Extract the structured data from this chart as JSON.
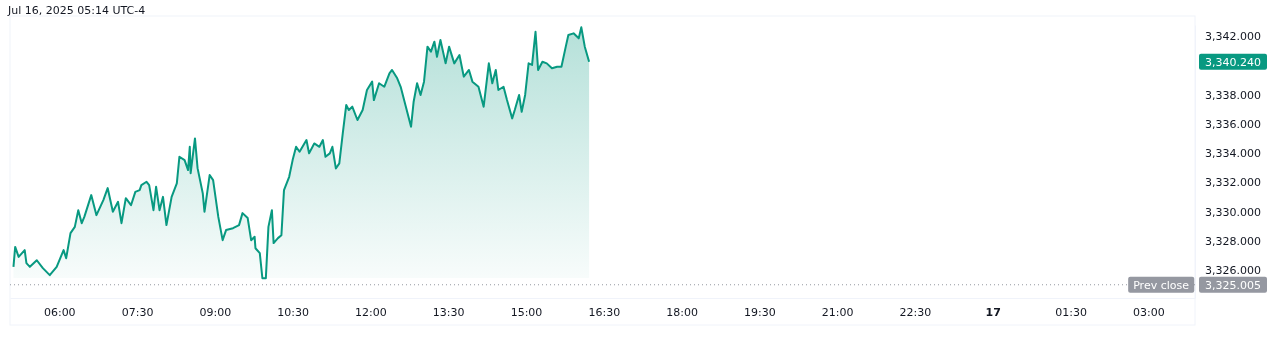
{
  "chart_data": {
    "type": "area",
    "title": "Jul 16, 2025 05:14 UTC-4",
    "x": [
      "2025-07-16T05:07",
      "2025-07-16T05:09",
      "2025-07-16T05:13",
      "2025-07-16T05:20",
      "2025-07-16T05:22",
      "2025-07-16T05:26",
      "2025-07-16T05:34",
      "2025-07-16T05:41",
      "2025-07-16T05:49",
      "2025-07-16T05:57",
      "2025-07-16T06:05",
      "2025-07-16T06:08",
      "2025-07-16T06:13",
      "2025-07-16T06:18",
      "2025-07-16T06:22",
      "2025-07-16T06:26",
      "2025-07-16T06:29",
      "2025-07-16T06:37",
      "2025-07-16T06:43",
      "2025-07-16T06:51",
      "2025-07-16T06:56",
      "2025-07-16T07:02",
      "2025-07-16T07:08",
      "2025-07-16T07:12",
      "2025-07-16T07:17",
      "2025-07-16T07:23",
      "2025-07-16T07:28",
      "2025-07-16T07:33",
      "2025-07-16T07:35",
      "2025-07-16T07:41",
      "2025-07-16T07:44",
      "2025-07-16T07:49",
      "2025-07-16T07:52",
      "2025-07-16T07:56",
      "2025-07-16T08:00",
      "2025-07-16T08:04",
      "2025-07-16T08:10",
      "2025-07-16T08:16",
      "2025-07-16T08:19",
      "2025-07-16T08:25",
      "2025-07-16T08:29",
      "2025-07-16T08:31",
      "2025-07-16T08:32",
      "2025-07-16T08:37",
      "2025-07-16T08:40",
      "2025-07-16T08:46",
      "2025-07-16T08:48",
      "2025-07-16T08:54",
      "2025-07-16T08:58",
      "2025-07-16T09:04",
      "2025-07-16T09:09",
      "2025-07-16T09:13",
      "2025-07-16T09:21",
      "2025-07-16T09:28",
      "2025-07-16T09:32",
      "2025-07-16T09:38",
      "2025-07-16T09:42",
      "2025-07-16T09:46",
      "2025-07-16T09:47",
      "2025-07-16T09:52",
      "2025-07-16T09:55",
      "2025-07-16T09:59",
      "2025-07-16T10:02",
      "2025-07-16T10:06",
      "2025-07-16T10:08",
      "2025-07-16T10:13",
      "2025-07-16T10:17",
      "2025-07-16T10:20",
      "2025-07-16T10:26",
      "2025-07-16T10:30",
      "2025-07-16T10:34",
      "2025-07-16T10:38",
      "2025-07-16T10:46",
      "2025-07-16T10:49",
      "2025-07-16T10:55",
      "2025-07-16T11:01",
      "2025-07-16T11:05",
      "2025-07-16T11:08",
      "2025-07-16T11:13",
      "2025-07-16T11:16",
      "2025-07-16T11:20",
      "2025-07-16T11:24",
      "2025-07-16T11:28",
      "2025-07-16T11:32",
      "2025-07-16T11:35",
      "2025-07-16T11:39",
      "2025-07-16T11:45",
      "2025-07-16T11:51",
      "2025-07-16T11:56",
      "2025-07-16T12:02",
      "2025-07-16T12:04",
      "2025-07-16T12:10",
      "2025-07-16T12:16",
      "2025-07-16T12:22",
      "2025-07-16T12:25",
      "2025-07-16T12:31",
      "2025-07-16T12:35",
      "2025-07-16T12:41",
      "2025-07-16T12:47",
      "2025-07-16T12:50",
      "2025-07-16T12:54",
      "2025-07-16T12:58",
      "2025-07-16T13:02",
      "2025-07-16T13:06",
      "2025-07-16T13:10",
      "2025-07-16T13:14",
      "2025-07-16T13:17",
      "2025-07-16T13:21",
      "2025-07-16T13:27",
      "2025-07-16T13:31",
      "2025-07-16T13:37",
      "2025-07-16T13:43",
      "2025-07-16T13:48",
      "2025-07-16T13:54",
      "2025-07-16T13:58",
      "2025-07-16T14:05",
      "2025-07-16T14:11",
      "2025-07-16T14:17",
      "2025-07-16T14:21",
      "2025-07-16T14:25",
      "2025-07-16T14:28",
      "2025-07-16T14:34",
      "2025-07-16T14:38",
      "2025-07-16T14:44",
      "2025-07-16T14:47",
      "2025-07-16T14:52",
      "2025-07-16T14:55",
      "2025-07-16T14:59",
      "2025-07-16T15:03",
      "2025-07-16T15:07",
      "2025-07-16T15:11",
      "2025-07-16T15:14",
      "2025-07-16T15:19",
      "2025-07-16T15:24",
      "2025-07-16T15:30",
      "2025-07-16T15:36",
      "2025-07-16T15:41",
      "2025-07-16T15:46",
      "2025-07-16T15:49",
      "2025-07-16T15:55",
      "2025-07-16T16:01",
      "2025-07-16T16:04",
      "2025-07-16T16:08",
      "2025-07-16T16:13"
    ],
    "series": [
      {
        "color": "#089981",
        "values": [
          3326.23,
          3327.59,
          3326.91,
          3327.37,
          3326.48,
          3326.23,
          3326.68,
          3326.14,
          3325.66,
          3326.23,
          3327.37,
          3326.82,
          3328.53,
          3328.96,
          3330.1,
          3329.21,
          3329.64,
          3331.13,
          3329.76,
          3330.79,
          3331.61,
          3329.99,
          3330.67,
          3329.21,
          3330.92,
          3330.44,
          3331.35,
          3331.47,
          3331.81,
          3332.04,
          3331.81,
          3330.1,
          3331.7,
          3330.1,
          3331.01,
          3329.08,
          3331.01,
          3331.93,
          3333.75,
          3333.52,
          3332.84,
          3334.43,
          3332.63,
          3335.0,
          3332.97,
          3331.26,
          3329.99,
          3332.5,
          3332.15,
          3329.64,
          3328.05,
          3328.74,
          3328.87,
          3329.08,
          3329.9,
          3329.56,
          3328.05,
          3328.28,
          3327.5,
          3327.16,
          3325.45,
          3325.45,
          3328.96,
          3330.1,
          3327.85,
          3328.19,
          3328.39,
          3331.47,
          3332.38,
          3333.52,
          3334.43,
          3334.09,
          3334.89,
          3333.98,
          3334.66,
          3334.43,
          3334.89,
          3333.75,
          3333.98,
          3334.43,
          3332.95,
          3333.3,
          3335.35,
          3337.28,
          3336.94,
          3337.17,
          3336.26,
          3336.94,
          3338.31,
          3338.88,
          3337.62,
          3338.77,
          3338.53,
          3339.45,
          3339.68,
          3339.11,
          3338.53,
          3337.17,
          3335.8,
          3337.51,
          3338.77,
          3337.97,
          3338.88,
          3341.27,
          3340.93,
          3341.61,
          3340.58,
          3341.73,
          3340.13,
          3341.27,
          3340.13,
          3340.7,
          3339.22,
          3339.68,
          3338.88,
          3338.53,
          3337.17,
          3340.13,
          3338.77,
          3339.68,
          3338.31,
          3338.53,
          3337.62,
          3336.37,
          3336.94,
          3337.97,
          3336.82,
          3337.97,
          3340.13,
          3340.02,
          3342.29,
          3339.68,
          3340.24,
          3340.13,
          3339.79,
          3339.9,
          3339.9,
          3341.27,
          3342.07,
          3342.18,
          3341.84,
          3342.59,
          3341.27,
          3340.24
        ]
      }
    ],
    "xlim": [
      "2025-07-16T05:03",
      "2025-07-17T03:54"
    ],
    "xticks": [
      {
        "value": "2025-07-16T06:00",
        "label": "06:00"
      },
      {
        "value": "2025-07-16T07:30",
        "label": "07:30"
      },
      {
        "value": "2025-07-16T09:00",
        "label": "09:00"
      },
      {
        "value": "2025-07-16T10:30",
        "label": "10:30"
      },
      {
        "value": "2025-07-16T12:00",
        "label": "12:00"
      },
      {
        "value": "2025-07-16T13:30",
        "label": "13:30"
      },
      {
        "value": "2025-07-16T15:00",
        "label": "15:00"
      },
      {
        "value": "2025-07-16T16:30",
        "label": "16:30"
      },
      {
        "value": "2025-07-16T18:00",
        "label": "18:00"
      },
      {
        "value": "2025-07-16T19:30",
        "label": "19:30"
      },
      {
        "value": "2025-07-16T21:00",
        "label": "21:00"
      },
      {
        "value": "2025-07-16T22:30",
        "label": "22:30"
      },
      {
        "value": "2025-07-17T00:00",
        "label": "17"
      },
      {
        "value": "2025-07-17T01:30",
        "label": "01:30"
      },
      {
        "value": "2025-07-17T03:00",
        "label": "03:00"
      }
    ],
    "ylim": [
      3324.1,
      3342.75
    ],
    "yticks": [
      {
        "value": 3326,
        "label": "3,326.000"
      },
      {
        "value": 3328,
        "label": "3,328.000"
      },
      {
        "value": 3330,
        "label": "3,330.000"
      },
      {
        "value": 3332,
        "label": "3,332.000"
      },
      {
        "value": 3334,
        "label": "3,334.000"
      },
      {
        "value": 3336,
        "label": "3,336.000"
      },
      {
        "value": 3338,
        "label": "3,338.000"
      },
      {
        "value": 3342,
        "label": "3,342.000"
      }
    ],
    "ref_lines": [
      {
        "axis": "y",
        "value": 3325.005,
        "label": "Prev close",
        "color": "#9598a1",
        "line_style": "dotted"
      }
    ],
    "annotations": [
      {
        "text": "3,325.005",
        "x": "2025-07-17T03:54",
        "y": 3325.005
      },
      "3,340.240"
    ]
  }
}
